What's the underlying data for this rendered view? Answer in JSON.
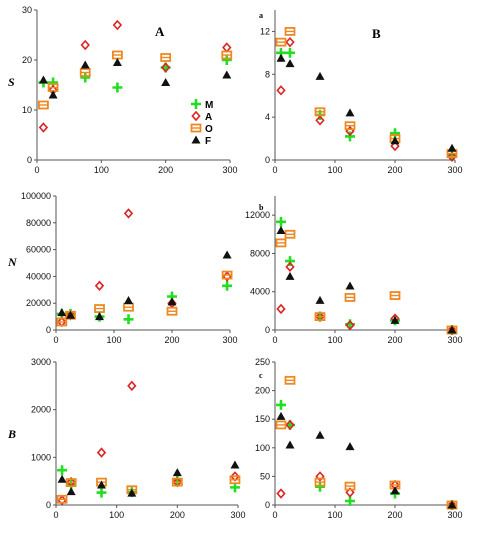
{
  "figure": {
    "row_labels": [
      "S",
      "N",
      "B"
    ],
    "panel_labels": [
      "A",
      "B"
    ],
    "subpanel_labels": [
      "a",
      "b",
      "c"
    ]
  },
  "legend": {
    "entries": [
      {
        "label": "M",
        "color": "#22dd22",
        "marker": "plus"
      },
      {
        "label": "A",
        "color": "#dd2222",
        "marker": "diamond"
      },
      {
        "label": "O",
        "color": "#ee8822",
        "marker": "square"
      },
      {
        "label": "F",
        "color": "#111111",
        "marker": "triangle"
      }
    ]
  },
  "chart_data": [
    {
      "id": "S-A",
      "type": "scatter",
      "ylabel": "S",
      "panel_label": "A",
      "xlim": [
        0,
        300
      ],
      "ylim": [
        0,
        30
      ],
      "xticks": [
        0,
        100,
        200,
        300
      ],
      "yticks": [
        0,
        10,
        20,
        30
      ],
      "series": [
        {
          "name": "M",
          "x": [
            10,
            25,
            75,
            125,
            200,
            295
          ],
          "y": [
            15.5,
            15.5,
            16.5,
            14.5,
            18.5,
            20
          ]
        },
        {
          "name": "A",
          "x": [
            10,
            25,
            75,
            125,
            200,
            295
          ],
          "y": [
            6.5,
            14,
            23,
            27,
            18.5,
            22.5
          ]
        },
        {
          "name": "O",
          "x": [
            10,
            25,
            75,
            125,
            200,
            295
          ],
          "y": [
            11,
            14.5,
            17.5,
            21,
            20.5,
            21
          ]
        },
        {
          "name": "F",
          "x": [
            10,
            25,
            75,
            125,
            200,
            295
          ],
          "y": [
            16,
            13,
            19,
            19.5,
            15.5,
            17
          ]
        }
      ]
    },
    {
      "id": "S-B",
      "type": "scatter",
      "panel_label": "B",
      "subpanel_label": "a",
      "xlim": [
        0,
        300
      ],
      "ylim": [
        0,
        14
      ],
      "xticks": [
        0,
        100,
        200,
        300
      ],
      "yticks": [
        0,
        4,
        8,
        12
      ],
      "series": [
        {
          "name": "M",
          "x": [
            10,
            25,
            75,
            125,
            200,
            295
          ],
          "y": [
            10,
            10,
            4.2,
            2.2,
            2.5,
            0.5
          ]
        },
        {
          "name": "A",
          "x": [
            10,
            25,
            75,
            125,
            200,
            295
          ],
          "y": [
            6.5,
            11,
            3.7,
            2.7,
            1.3,
            0.3
          ]
        },
        {
          "name": "O",
          "x": [
            10,
            25,
            75,
            125,
            200,
            295
          ],
          "y": [
            11,
            12,
            4.5,
            3.2,
            2,
            0.6
          ]
        },
        {
          "name": "F",
          "x": [
            10,
            25,
            75,
            125,
            200,
            295
          ],
          "y": [
            9.5,
            9,
            7.8,
            4.4,
            1.8,
            1.1
          ]
        }
      ]
    },
    {
      "id": "N-A",
      "type": "scatter",
      "ylabel": "N",
      "xlim": [
        0,
        300
      ],
      "ylim": [
        0,
        100000
      ],
      "xticks": [
        0,
        100,
        200,
        300
      ],
      "yticks": [
        0,
        20000,
        40000,
        60000,
        80000,
        100000
      ],
      "series": [
        {
          "name": "M",
          "x": [
            10,
            25,
            75,
            125,
            200,
            295
          ],
          "y": [
            12000,
            12000,
            10000,
            8000,
            25000,
            33000
          ]
        },
        {
          "name": "A",
          "x": [
            10,
            25,
            75,
            125,
            200,
            295
          ],
          "y": [
            6000,
            11000,
            33000,
            87000,
            20000,
            40000
          ]
        },
        {
          "name": "O",
          "x": [
            10,
            25,
            75,
            125,
            200,
            295
          ],
          "y": [
            6000,
            11000,
            16000,
            17000,
            14000,
            41000
          ]
        },
        {
          "name": "F",
          "x": [
            10,
            25,
            75,
            125,
            200,
            295
          ],
          "y": [
            13000,
            11000,
            10000,
            22000,
            21000,
            56000
          ]
        }
      ]
    },
    {
      "id": "N-B",
      "type": "scatter",
      "subpanel_label": "b",
      "xlim": [
        0,
        300
      ],
      "ylim": [
        0,
        14000
      ],
      "xticks": [
        0,
        100,
        200,
        300
      ],
      "yticks": [
        0,
        4000,
        8000,
        12000
      ],
      "series": [
        {
          "name": "M",
          "x": [
            10,
            25,
            75,
            125,
            200,
            295
          ],
          "y": [
            11300,
            7200,
            1400,
            600,
            1000,
            0
          ]
        },
        {
          "name": "A",
          "x": [
            10,
            25,
            75,
            125,
            200,
            295
          ],
          "y": [
            2200,
            6600,
            1400,
            500,
            1200,
            0
          ]
        },
        {
          "name": "O",
          "x": [
            10,
            25,
            75,
            125,
            200,
            295
          ],
          "y": [
            9100,
            10000,
            1400,
            3400,
            3600,
            0
          ]
        },
        {
          "name": "F",
          "x": [
            10,
            25,
            75,
            125,
            200,
            295
          ],
          "y": [
            10400,
            5600,
            3100,
            4600,
            1000,
            0
          ]
        }
      ]
    },
    {
      "id": "B-A",
      "type": "scatter",
      "ylabel": "B",
      "xlim": [
        0,
        300
      ],
      "ylim": [
        0,
        3000
      ],
      "xticks": [
        0,
        100,
        200,
        300
      ],
      "yticks": [
        0,
        1000,
        2000,
        3000
      ],
      "series": [
        {
          "name": "M",
          "x": [
            10,
            25,
            75,
            125,
            200,
            295
          ],
          "y": [
            730,
            430,
            260,
            270,
            520,
            370
          ]
        },
        {
          "name": "A",
          "x": [
            10,
            25,
            75,
            125,
            200,
            295
          ],
          "y": [
            100,
            480,
            1100,
            2500,
            480,
            600
          ]
        },
        {
          "name": "O",
          "x": [
            10,
            25,
            75,
            125,
            200,
            295
          ],
          "y": [
            120,
            470,
            480,
            320,
            480,
            530
          ]
        },
        {
          "name": "F",
          "x": [
            10,
            25,
            75,
            125,
            200,
            295
          ],
          "y": [
            540,
            280,
            420,
            250,
            680,
            840
          ]
        }
      ]
    },
    {
      "id": "B-B",
      "type": "scatter",
      "subpanel_label": "c",
      "xlim": [
        0,
        300
      ],
      "ylim": [
        0,
        250
      ],
      "xticks": [
        0,
        100,
        200,
        300
      ],
      "yticks": [
        0,
        50,
        100,
        150,
        200,
        250
      ],
      "series": [
        {
          "name": "M",
          "x": [
            10,
            25,
            75,
            125,
            200,
            295
          ],
          "y": [
            175,
            140,
            32,
            7,
            20,
            0
          ]
        },
        {
          "name": "A",
          "x": [
            10,
            25,
            75,
            125,
            200,
            295
          ],
          "y": [
            20,
            140,
            50,
            22,
            35,
            0
          ]
        },
        {
          "name": "O",
          "x": [
            10,
            25,
            75,
            125,
            200,
            295
          ],
          "y": [
            140,
            218,
            40,
            33,
            35,
            0
          ]
        },
        {
          "name": "F",
          "x": [
            10,
            25,
            75,
            125,
            200,
            295
          ],
          "y": [
            155,
            105,
            122,
            102,
            25,
            0
          ]
        }
      ]
    }
  ]
}
